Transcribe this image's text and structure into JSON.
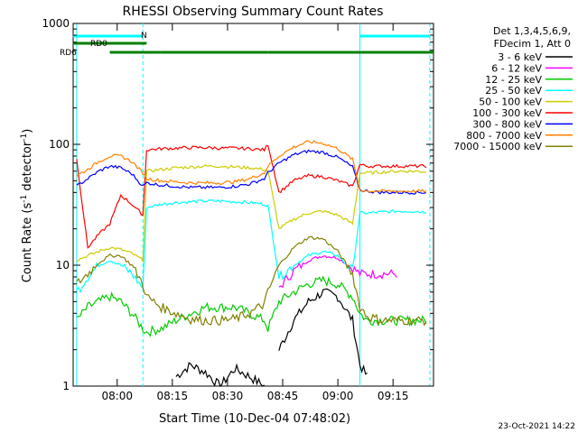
{
  "chart_data": {
    "type": "line",
    "title": "RHESSI Observing Summary Count Rates",
    "xlabel": "Start Time (10-Dec-04 07:48:02)",
    "ylabel_main": "Count Rate (s",
    "ylabel_sup1": "-1",
    "ylabel_mid": " detector",
    "ylabel_sup2": "-1",
    "ylabel_end": ")",
    "y_scale": "log",
    "ylim": [
      1,
      1000
    ],
    "xlim": [
      "07:48:02",
      "09:26:00"
    ],
    "x_ticks": [
      "08:00",
      "08:15",
      "08:30",
      "08:45",
      "09:00",
      "09:15"
    ],
    "y_ticks": [
      "1",
      "10",
      "100",
      "1000"
    ],
    "legend_header": [
      "Det 1,3,4,5,6,9,",
      "FDecim 1, Att 0"
    ],
    "legend_placement": "right",
    "timestamp": "23-Oct-2021 14:22",
    "flags": [
      {
        "name": "RD0",
        "intervals": [
          [
            "07:48",
            "08:08"
          ]
        ]
      },
      {
        "name": "RD6",
        "intervals": [
          [
            "07:58",
            "08:12"
          ],
          [
            "08:12",
            "08:41"
          ],
          [
            "08:41",
            "09:06"
          ],
          [
            "09:06",
            "09:26"
          ]
        ]
      },
      {
        "name": "N",
        "intervals": [
          [
            "07:48",
            "08:07"
          ],
          [
            "09:06",
            "09:25"
          ]
        ]
      }
    ],
    "series_x": [
      "07:49",
      "07:52",
      "07:55",
      "07:58",
      "08:01",
      "08:04",
      "08:07",
      "08:08",
      "08:12",
      "08:16",
      "08:20",
      "08:24",
      "08:28",
      "08:32",
      "08:36",
      "08:40",
      "08:41",
      "08:44",
      "08:48",
      "08:52",
      "08:56",
      "09:00",
      "09:04",
      "09:06",
      "09:08",
      "09:12",
      "09:16",
      "09:20",
      "09:24"
    ],
    "series": [
      {
        "name": "3 - 6 keV",
        "color": "#000000",
        "values": [
          null,
          null,
          null,
          null,
          null,
          null,
          null,
          null,
          null,
          1.2,
          1.5,
          1.3,
          1.0,
          1.4,
          1.2,
          1.0,
          null,
          2.0,
          3.5,
          5.0,
          6.0,
          5.5,
          3.5,
          1.5,
          1.2,
          null,
          null,
          null,
          null
        ]
      },
      {
        "name": "6 - 12 keV",
        "color": "#ff00ff",
        "values": [
          null,
          null,
          null,
          null,
          null,
          null,
          null,
          null,
          null,
          null,
          null,
          null,
          null,
          null,
          null,
          null,
          null,
          6.5,
          9.0,
          11.0,
          12.0,
          11.5,
          9.5,
          8.5,
          8.5,
          8.5,
          8.5,
          null,
          null
        ]
      },
      {
        "name": "12 - 25 keV",
        "color": "#00cc00",
        "values": [
          3.5,
          4.5,
          5.0,
          5.5,
          5.0,
          4.0,
          3.0,
          2.8,
          3.0,
          3.5,
          4.0,
          4.5,
          4.5,
          4.5,
          4.0,
          3.5,
          3.0,
          5.0,
          6.0,
          7.0,
          7.5,
          7.0,
          5.5,
          4.0,
          3.5,
          3.5,
          3.5,
          3.5,
          3.5
        ]
      },
      {
        "name": "25 - 50 keV",
        "color": "#00ffff",
        "values": [
          6.0,
          8.0,
          10.0,
          11.0,
          10.0,
          8.5,
          6.5,
          30.0,
          32.0,
          33.0,
          33.5,
          34.0,
          34.0,
          33.5,
          33.0,
          32.0,
          31.0,
          8.0,
          10.0,
          12.0,
          13.0,
          12.0,
          9.0,
          27.0,
          27.0,
          27.5,
          28.0,
          28.0,
          27.5
        ]
      },
      {
        "name": "50 - 100 keV",
        "color": "#cccc00",
        "values": [
          11.0,
          12.0,
          13.0,
          14.0,
          13.5,
          12.5,
          11.0,
          60.0,
          62.0,
          64.0,
          65.0,
          66.0,
          66.0,
          65.0,
          64.0,
          62.0,
          60.0,
          20.0,
          24.0,
          27.0,
          28.0,
          26.0,
          22.0,
          58.0,
          58.0,
          59.0,
          60.0,
          60.0,
          59.5
        ]
      },
      {
        "name": "100 - 300 keV",
        "color": "#ff0000",
        "values": [
          75.0,
          14.0,
          18.0,
          22.0,
          38.0,
          32.0,
          26.0,
          90.0,
          92.0,
          93.0,
          94.0,
          94.0,
          93.0,
          93.0,
          92.0,
          90.0,
          100.0,
          40.0,
          50.0,
          55.0,
          54.0,
          50.0,
          45.0,
          68.0,
          66.0,
          66.0,
          66.0,
          66.0,
          66.0
        ]
      },
      {
        "name": "300 - 800 keV",
        "color": "#0000ff",
        "values": [
          45.0,
          52.0,
          60.0,
          66.0,
          64.0,
          57.0,
          45.0,
          48.0,
          46.0,
          45.0,
          44.0,
          44.0,
          44.0,
          45.0,
          47.0,
          52.0,
          58.0,
          70.0,
          82.0,
          88.0,
          86.0,
          78.0,
          65.0,
          42.0,
          41.0,
          40.0,
          40.0,
          40.0,
          40.0
        ]
      },
      {
        "name": "800 - 7000 keV",
        "color": "#ff8000",
        "values": [
          55.0,
          62.0,
          72.0,
          80.0,
          80.0,
          72.0,
          58.0,
          52.0,
          50.0,
          49.0,
          48.0,
          48.0,
          48.0,
          49.0,
          52.0,
          58.0,
          66.0,
          80.0,
          95.0,
          105.0,
          102.0,
          92.0,
          75.0,
          42.0,
          41.0,
          41.0,
          41.0,
          41.0,
          41.0
        ]
      },
      {
        "name": "7000 - 15000 keV",
        "color": "#808000",
        "values": [
          7.0,
          8.5,
          10.5,
          12.0,
          12.0,
          10.0,
          7.0,
          5.5,
          4.5,
          4.0,
          3.6,
          3.5,
          3.5,
          3.6,
          4.0,
          4.8,
          6.0,
          10.0,
          14.0,
          17.0,
          16.5,
          13.0,
          8.5,
          4.5,
          3.8,
          3.5,
          3.5,
          3.5,
          3.5
        ]
      }
    ]
  }
}
